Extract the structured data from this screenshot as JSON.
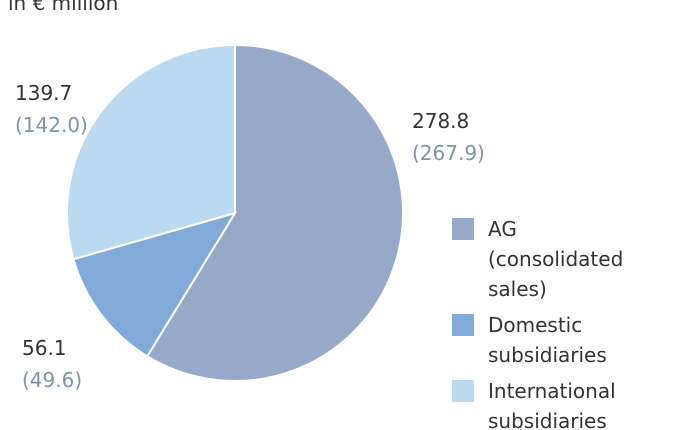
{
  "chart_data": {
    "type": "pie",
    "subtitle": "in € million",
    "categories": [
      "AG (consolidated sales)",
      "Domestic subsidiaries",
      "International subsidiaries"
    ],
    "values": [
      278.8,
      56.1,
      139.7
    ],
    "prior_year_labels": [
      "(267.9)",
      "(49.6)",
      "(142.0)"
    ],
    "colors": [
      "#97a9c8",
      "#82aad9",
      "#bcd9f2"
    ]
  }
}
